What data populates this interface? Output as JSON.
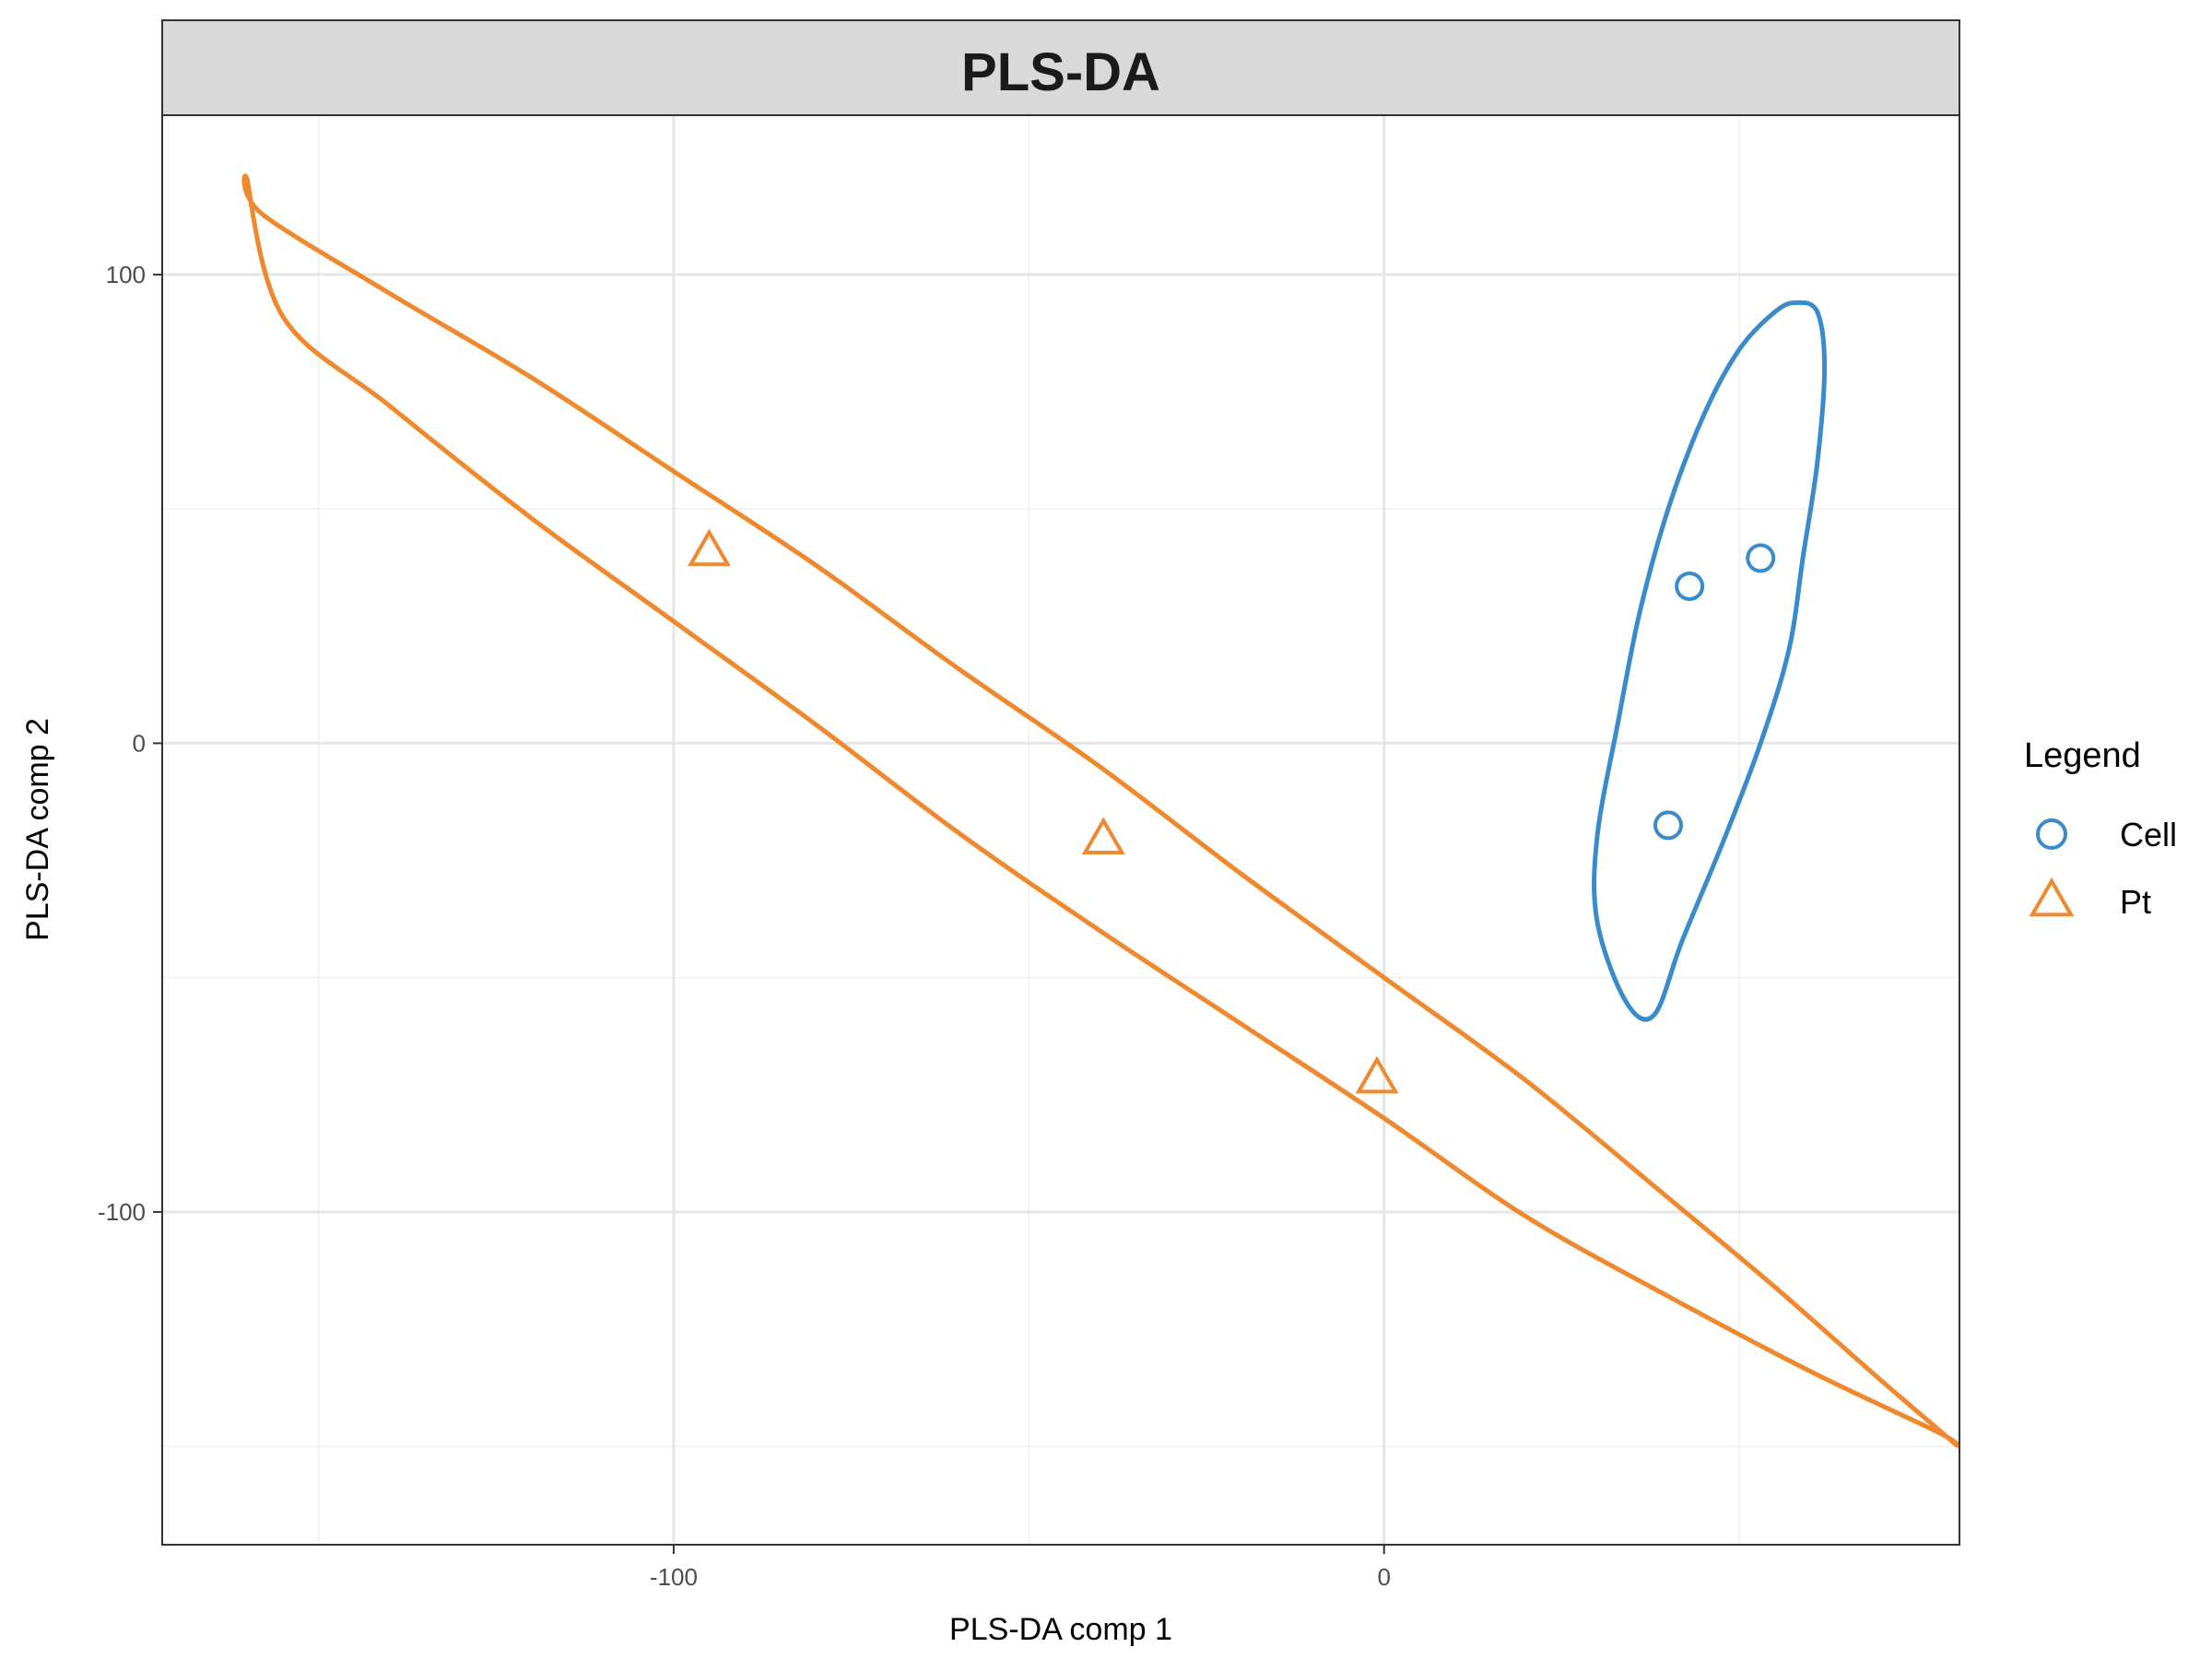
{
  "chart_data": {
    "type": "scatter",
    "title": "PLS-DA",
    "xlabel": "PLS-DA comp 1",
    "ylabel": "PLS-DA comp 2",
    "xlim": [
      -172,
      81
    ],
    "ylim": [
      -171,
      134
    ],
    "xticks": [
      -100,
      0
    ],
    "yticks": [
      -100,
      0,
      100
    ],
    "x_minor_gridlines": [
      -150,
      -50,
      50
    ],
    "y_minor_gridlines": [
      -150,
      -50,
      50
    ],
    "grid": true,
    "legend": {
      "title": "Legend",
      "position": "right"
    },
    "series": [
      {
        "name": "Cell",
        "marker": "circle",
        "color": "#3a8bcb",
        "points": [
          [
            43,
            33.5
          ],
          [
            53,
            39.5
          ],
          [
            40,
            -17.5
          ]
        ],
        "ellipse": {
          "center": [
            42,
            18
          ],
          "path": [
            [
              38,
              -58
            ],
            [
              34,
              -55
            ],
            [
              30,
              -38
            ],
            [
              30,
              -20
            ],
            [
              33,
              5
            ],
            [
              36,
              28
            ],
            [
              40,
              50
            ],
            [
              45,
              70
            ],
            [
              50,
              84
            ],
            [
              55,
              92
            ],
            [
              58,
              94
            ],
            [
              61,
              92
            ],
            [
              62,
              80
            ],
            [
              61,
              60
            ],
            [
              59,
              40
            ],
            [
              57,
              20
            ],
            [
              53,
              0
            ],
            [
              48,
              -20
            ],
            [
              42,
              -42
            ],
            [
              38,
              -58
            ]
          ]
        }
      },
      {
        "name": "Pt",
        "marker": "triangle",
        "color": "#f0882d",
        "points": [
          [
            -95,
            40.5
          ],
          [
            -39.5,
            -21
          ],
          [
            -1,
            -72
          ]
        ],
        "ellipse": {
          "center": [
            -45,
            -19
          ],
          "path": [
            [
              -160,
              120
            ],
            [
              -158,
              113
            ],
            [
              -140,
              96
            ],
            [
              -120,
              78
            ],
            [
              -100,
              58
            ],
            [
              -80,
              38
            ],
            [
              -60,
              16
            ],
            [
              -40,
              -5
            ],
            [
              -20,
              -28
            ],
            [
              0,
              -50
            ],
            [
              20,
              -72
            ],
            [
              40,
              -97
            ],
            [
              55,
              -116
            ],
            [
              70,
              -136
            ],
            [
              80,
              -149
            ],
            [
              78,
              -147
            ],
            [
              60,
              -134
            ],
            [
              40,
              -118
            ],
            [
              20,
              -101
            ],
            [
              0,
              -80
            ],
            [
              -20,
              -60
            ],
            [
              -40,
              -40
            ],
            [
              -60,
              -19
            ],
            [
              -80,
              4
            ],
            [
              -100,
              26
            ],
            [
              -120,
              48
            ],
            [
              -140,
              72
            ],
            [
              -155,
              91
            ],
            [
              -160,
              120
            ]
          ]
        }
      }
    ]
  }
}
